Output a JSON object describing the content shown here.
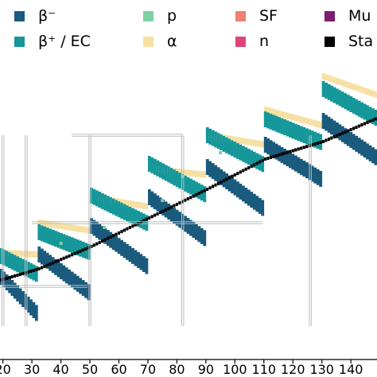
{
  "chart_data": {
    "type": "heatmap",
    "title": "",
    "xlabel": "",
    "ylabel": "",
    "xlim": [
      19,
      149
    ],
    "x_ticks": [
      20,
      30,
      40,
      50,
      60,
      70,
      80,
      90,
      100,
      110,
      120,
      130,
      140
    ],
    "x_tick_labels": [
      "20",
      "30",
      "40",
      "50",
      "60",
      "70",
      "80",
      "90",
      "100",
      "110",
      "120",
      "130",
      "140"
    ],
    "grid": false,
    "legend_position": "top",
    "legend": [
      {
        "key": "beta_minus",
        "label": "β⁻",
        "color": "#1a5a7d"
      },
      {
        "key": "beta_plus_ec",
        "label": "β⁺ / EC",
        "color": "#16979a"
      },
      {
        "key": "p",
        "label": "p",
        "color": "#7ed1a1"
      },
      {
        "key": "alpha",
        "label": "α",
        "color": "#f6e0a3"
      },
      {
        "key": "sf",
        "label": "SF",
        "color": "#ee8074"
      },
      {
        "key": "n",
        "label": "n",
        "color": "#dc4578"
      },
      {
        "key": "multi",
        "label": "Mu",
        "color": "#7c1d6f"
      },
      {
        "key": "stable",
        "label": "Sta",
        "color": "#000000"
      }
    ],
    "magic_numbers": [
      20,
      28,
      50,
      82,
      126
    ],
    "bands": [
      {
        "x": [
          19,
          32
        ],
        "stable_center": [
          338,
          352
        ],
        "beta_minus": [
          346,
          395
        ],
        "beta_plus": [
          322,
          346
        ],
        "alpha": [
          320,
          322
        ]
      },
      {
        "x": [
          32,
          50
        ],
        "stable_center": [
          310,
          338
        ],
        "beta_minus": [
          318,
          368
        ],
        "beta_plus": [
          292,
          318
        ],
        "alpha": [
          282,
          292
        ]
      },
      {
        "x": [
          50,
          70
        ],
        "stable_center": [
          274,
          310
        ],
        "beta_minus": [
          282,
          335
        ],
        "beta_plus": [
          246,
          282
        ],
        "alpha": [
          250,
          262
        ]
      },
      {
        "x": [
          70,
          90
        ],
        "stable_center": [
          238,
          274
        ],
        "beta_minus": [
          246,
          300
        ],
        "beta_plus": [
          206,
          246
        ],
        "alpha": [
          214,
          222
        ]
      },
      {
        "x": [
          90,
          110
        ],
        "stable_center": [
          200,
          238
        ],
        "beta_minus": [
          208,
          262
        ],
        "beta_plus": [
          170,
          208
        ],
        "alpha": [
          172,
          184
        ]
      },
      {
        "x": [
          110,
          130
        ],
        "stable_center": [
          178,
          200
        ],
        "beta_minus": [
          180,
          225
        ],
        "beta_plus": [
          150,
          180
        ],
        "alpha": [
          140,
          160
        ]
      },
      {
        "x": [
          130,
          149
        ],
        "stable_center": [
          148,
          178
        ],
        "beta_minus": [
          150,
          198
        ],
        "beta_plus": [
          112,
          150
        ],
        "alpha": [
          98,
          122
        ]
      }
    ]
  }
}
